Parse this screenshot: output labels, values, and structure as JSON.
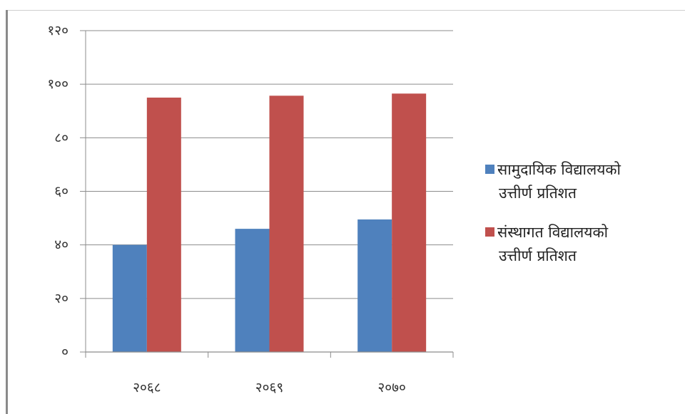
{
  "chart_data": {
    "type": "bar",
    "categories": [
      "२०६८",
      "२०६९",
      "२०७०"
    ],
    "series": [
      {
        "name": "सामुदायिक विद्यालयको उत्तीर्ण प्रतिशत",
        "color": "#4f81bd",
        "values": [
          40,
          46,
          49.5
        ]
      },
      {
        "name": "संस्थागत विद्यालयको उत्तीर्ण प्रतिशत",
        "color": "#c0504d",
        "values": [
          95,
          95.7,
          96.5
        ]
      }
    ],
    "ylim": [
      0,
      120
    ],
    "yticks": [
      0,
      20,
      40,
      60,
      80,
      100,
      120
    ],
    "ytick_labels": [
      "०",
      "२०",
      "४०",
      "६०",
      "८०",
      "१००",
      "१२०"
    ],
    "grid": true,
    "legend": "right",
    "legend_lines": [
      [
        "सामुदायिक विद्यालयको",
        "उत्तीर्ण प्रतिशत"
      ],
      [
        "संस्थागत विद्यालयको",
        "उत्तीर्ण प्रतिशत"
      ]
    ],
    "title": "",
    "xlabel": "",
    "ylabel": ""
  }
}
